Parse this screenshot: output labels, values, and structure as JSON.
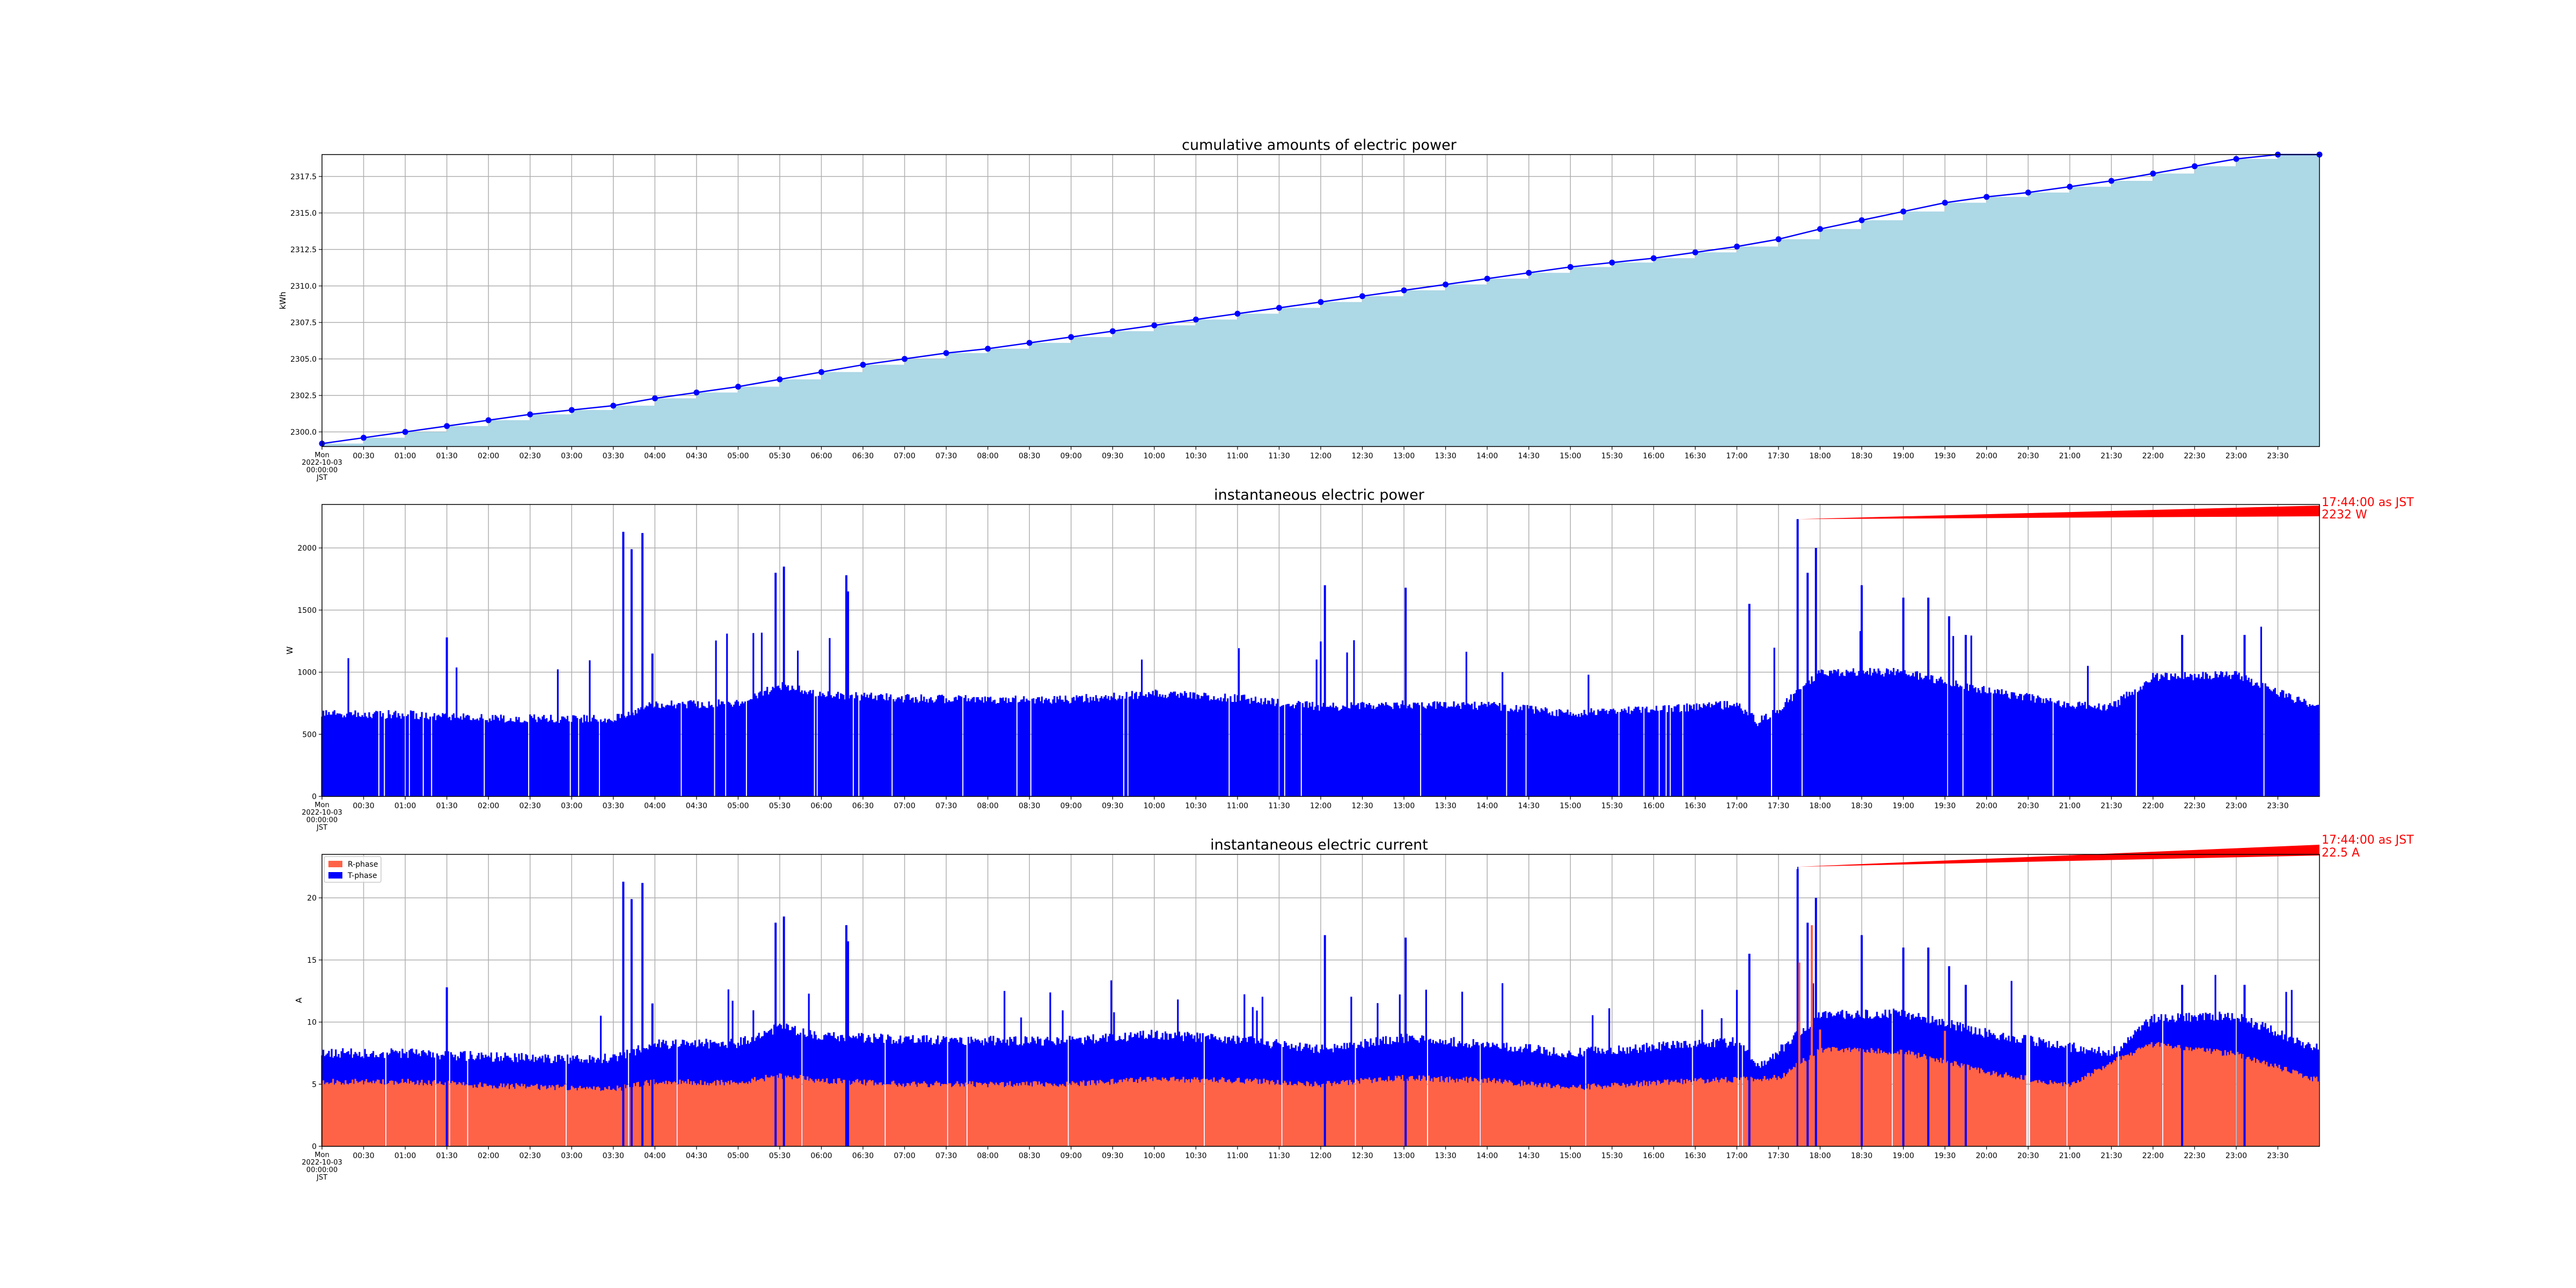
{
  "colors": {
    "cumulative_fill": "#add8e6",
    "line_blue": "#0000ff",
    "r_phase": "#ff6347",
    "t_phase": "#0000ff",
    "annotation": "#ff0000",
    "grid": "#b0b0b0"
  },
  "x_tick_labels": [
    "00:30",
    "01:00",
    "01:30",
    "02:00",
    "02:30",
    "03:00",
    "03:30",
    "04:00",
    "04:30",
    "05:00",
    "05:30",
    "06:00",
    "06:30",
    "07:00",
    "07:30",
    "08:00",
    "08:30",
    "09:00",
    "09:30",
    "10:00",
    "10:30",
    "11:00",
    "11:30",
    "12:00",
    "12:30",
    "13:00",
    "13:30",
    "14:00",
    "14:30",
    "15:00",
    "15:30",
    "16:00",
    "16:30",
    "17:00",
    "17:30",
    "18:00",
    "18:30",
    "19:00",
    "19:30",
    "20:00",
    "20:30",
    "21:00",
    "21:30",
    "22:00",
    "22:30",
    "23:00",
    "23:30"
  ],
  "chart_data": [
    {
      "type": "area",
      "title": "cumulative amounts of electric power",
      "ylabel": "kWh",
      "xlabel_first": [
        "Mon",
        "2022-10-03",
        "00:00:00",
        "JST"
      ],
      "x_domain_hours": [
        0,
        24
      ],
      "ylim": [
        2299.0,
        2319.0
      ],
      "yticks": [
        2300.0,
        2302.5,
        2305.0,
        2307.5,
        2310.0,
        2312.5,
        2315.0,
        2317.5
      ],
      "ytick_labels": [
        "2300.0",
        "2302.5",
        "2305.0",
        "2307.5",
        "2310.0",
        "2312.5",
        "2315.0",
        "2317.5"
      ],
      "grid": true,
      "series": [
        {
          "x_hours": [
            0,
            0.5,
            1,
            1.5,
            2,
            2.5,
            3,
            3.5,
            4,
            4.5,
            5,
            5.5,
            6,
            6.5,
            7,
            7.5,
            8,
            8.5,
            9,
            9.5,
            10,
            10.5,
            11,
            11.5,
            12,
            12.5,
            13,
            13.5,
            14,
            14.5,
            15,
            15.5,
            16,
            16.5,
            17,
            17.5,
            18,
            18.5,
            19,
            19.5,
            20,
            20.5,
            21,
            21.5,
            22,
            22.5,
            23,
            23.5,
            24
          ],
          "values": [
            2299.2,
            2299.6,
            2300.0,
            2300.4,
            2300.8,
            2301.2,
            2301.5,
            2301.8,
            2302.3,
            2302.7,
            2303.1,
            2303.6,
            2304.1,
            2304.6,
            2305.0,
            2305.4,
            2305.7,
            2306.1,
            2306.5,
            2306.9,
            2307.3,
            2307.7,
            2308.1,
            2308.5,
            2308.9,
            2309.3,
            2309.7,
            2310.1,
            2310.5,
            2310.9,
            2311.3,
            2311.6,
            2311.9,
            2312.3,
            2312.7,
            2313.2,
            2313.9,
            2314.5,
            2315.1,
            2315.7,
            2316.1,
            2316.4,
            2316.8,
            2317.2,
            2317.7,
            2318.2,
            2318.7,
            2319.0,
            2319.0
          ]
        }
      ]
    },
    {
      "type": "bar",
      "title": "instantaneous electric power",
      "ylabel": "W",
      "xlabel_first": [
        "Mon",
        "2022-10-03",
        "00:00:00",
        "JST"
      ],
      "x_domain_hours": [
        0,
        24
      ],
      "ylim": [
        0,
        2350
      ],
      "yticks": [
        0,
        500,
        1000,
        1500,
        2000
      ],
      "ytick_labels": [
        "0",
        "500",
        "1000",
        "1500",
        "2000"
      ],
      "grid": true,
      "baseline_profile_w": {
        "x_hours": [
          0,
          1,
          2,
          3,
          3.5,
          4,
          5,
          5.5,
          6,
          7,
          8,
          9,
          10,
          11,
          12,
          13,
          14,
          15,
          16,
          17,
          17.25,
          17.5,
          18,
          19,
          20,
          21,
          21.5,
          22,
          23,
          24
        ],
        "values": [
          660,
          660,
          630,
          620,
          630,
          740,
          750,
          890,
          820,
          790,
          780,
          780,
          830,
          790,
          720,
          740,
          730,
          670,
          700,
          740,
          600,
          700,
          1000,
          1000,
          850,
          740,
          720,
          960,
          980,
          700
        ]
      },
      "spikes_w": [
        {
          "t": 3.62,
          "v": 2130
        },
        {
          "t": 3.72,
          "v": 1990
        },
        {
          "t": 3.85,
          "v": 2120
        },
        {
          "t": 3.97,
          "v": 1150
        },
        {
          "t": 5.45,
          "v": 1800
        },
        {
          "t": 5.55,
          "v": 1850
        },
        {
          "t": 6.3,
          "v": 1780
        },
        {
          "t": 6.32,
          "v": 1650
        },
        {
          "t": 12.05,
          "v": 1700
        },
        {
          "t": 13.02,
          "v": 1680
        },
        {
          "t": 1.5,
          "v": 1280
        },
        {
          "t": 17.15,
          "v": 1550
        },
        {
          "t": 17.73,
          "v": 2232
        },
        {
          "t": 17.85,
          "v": 1800
        },
        {
          "t": 17.95,
          "v": 2000
        },
        {
          "t": 18.5,
          "v": 1700
        },
        {
          "t": 19.0,
          "v": 1600
        },
        {
          "t": 19.3,
          "v": 1600
        },
        {
          "t": 19.55,
          "v": 1450
        },
        {
          "t": 19.75,
          "v": 1300
        },
        {
          "t": 22.35,
          "v": 1300
        },
        {
          "t": 23.1,
          "v": 1300
        }
      ],
      "peak_annotation": {
        "time": "17:44:00 as JST",
        "value": "2232 W",
        "x_hours": 17.733,
        "y": 2232
      }
    },
    {
      "type": "bar",
      "title": "instantaneous electric current",
      "ylabel": "A",
      "xlabel_first": [
        "Mon",
        "2022-10-03",
        "00:00:00",
        "JST"
      ],
      "x_domain_hours": [
        0,
        24
      ],
      "ylim": [
        0,
        23.5
      ],
      "yticks": [
        0,
        5,
        10,
        15,
        20
      ],
      "ytick_labels": [
        "0",
        "5",
        "10",
        "15",
        "20"
      ],
      "grid": true,
      "legend": {
        "position": "upper-left",
        "entries": [
          "R-phase",
          "T-phase"
        ]
      },
      "r_phase_profile_a": {
        "x_hours": [
          0,
          1,
          2,
          3,
          3.5,
          4,
          5,
          5.5,
          6,
          7,
          8,
          9,
          10,
          11,
          12,
          13,
          14,
          15,
          16,
          17,
          17.5,
          18,
          19,
          20,
          21,
          21.5,
          22,
          23,
          24
        ],
        "values": [
          5.2,
          5.2,
          4.9,
          4.7,
          4.6,
          5.2,
          5.1,
          5.7,
          5.3,
          5.0,
          5.0,
          5.0,
          5.4,
          5.3,
          5.0,
          5.5,
          5.3,
          4.7,
          5.1,
          5.4,
          5.5,
          7.8,
          7.6,
          6.0,
          4.9,
          6.8,
          8.2,
          7.4,
          5.3
        ],
        "spikes": [
          {
            "t": 17.75,
            "v": 14.8
          },
          {
            "t": 17.9,
            "v": 17.8
          },
          {
            "t": 18.0,
            "v": 9.4
          },
          {
            "t": 19.5,
            "v": 9.3
          }
        ]
      },
      "total_profile_a": {
        "x_hours": [
          0,
          1,
          2,
          3,
          3.5,
          4,
          5,
          5.5,
          6,
          7,
          8,
          9,
          10,
          11,
          12,
          13,
          14,
          15,
          16,
          17,
          17.25,
          17.5,
          18,
          19,
          20,
          21,
          21.5,
          22,
          23,
          24
        ],
        "values": [
          7.5,
          7.5,
          7.2,
          7.0,
          7.1,
          8.2,
          8.3,
          9.6,
          8.9,
          8.6,
          8.5,
          8.5,
          9.0,
          8.6,
          7.8,
          8.7,
          8.2,
          7.5,
          8.0,
          8.4,
          6.5,
          7.6,
          10.6,
          10.7,
          9.1,
          8.0,
          7.5,
          10.3,
          10.5,
          7.8
        ]
      },
      "peak_annotation": {
        "time": "17:44:00 as JST",
        "value": "22.5 A",
        "x_hours": 17.733,
        "y": 22.5
      }
    }
  ]
}
